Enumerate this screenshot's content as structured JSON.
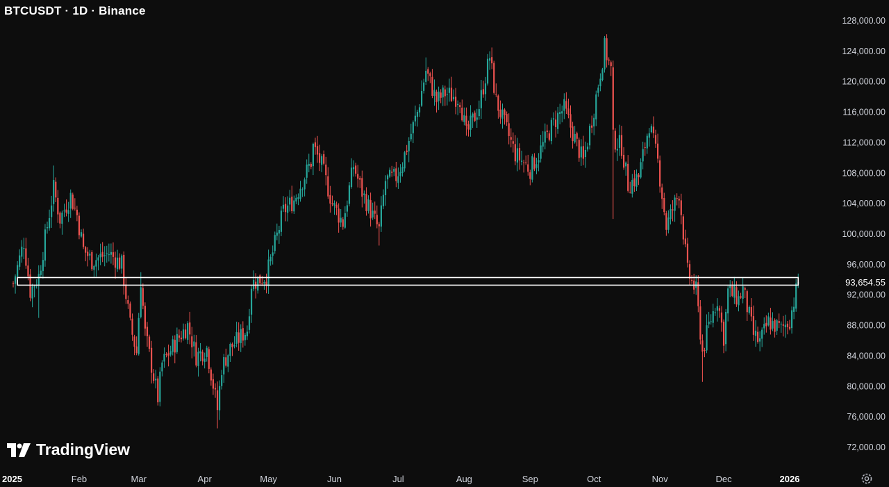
{
  "header": {
    "title": "BTCUSDT · 1D · Binance"
  },
  "branding": {
    "logo_text": "TradingView"
  },
  "icons": {
    "settings": "gear-icon",
    "logo": "tradingview-logo-icon"
  },
  "colors": {
    "up": "#26a69a",
    "down": "#ef5350",
    "background": "#0d0d0d",
    "zone": "#ffffff"
  },
  "chart_data": {
    "type": "candlestick",
    "title": "BTCUSDT · 1D · Binance",
    "xlabel": "",
    "ylabel": "",
    "ylim": [
      70000,
      130000
    ],
    "y_scale": "linear",
    "grid": false,
    "y_ticks": [
      72000,
      76000,
      80000,
      84000,
      88000,
      92000,
      96000,
      100000,
      104000,
      108000,
      112000,
      116000,
      120000,
      124000,
      128000
    ],
    "y_tick_labels": [
      "72,000.00",
      "76,000.00",
      "80,000.00",
      "84,000.00",
      "88,000.00",
      "92,000.00",
      "96,000.00",
      "100,000.00",
      "104,000.00",
      "108,000.00",
      "112,000.00",
      "116,000.00",
      "120,000.00",
      "124,000.00",
      "128,000.00"
    ],
    "x_ticks": [
      {
        "date": "2025-01-01",
        "label": "2025",
        "bold": true
      },
      {
        "date": "2025-02-01",
        "label": "Feb"
      },
      {
        "date": "2025-03-01",
        "label": "Mar"
      },
      {
        "date": "2025-04-01",
        "label": "Apr"
      },
      {
        "date": "2025-05-01",
        "label": "May"
      },
      {
        "date": "2025-06-01",
        "label": "Jun"
      },
      {
        "date": "2025-07-01",
        "label": "Jul"
      },
      {
        "date": "2025-08-01",
        "label": "Aug"
      },
      {
        "date": "2025-09-01",
        "label": "Sep"
      },
      {
        "date": "2025-10-01",
        "label": "Oct"
      },
      {
        "date": "2025-11-01",
        "label": "Nov"
      },
      {
        "date": "2025-12-01",
        "label": "Dec"
      },
      {
        "date": "2026-01-01",
        "label": "2026",
        "bold": true
      }
    ],
    "current_price": 93654.55,
    "current_price_label": "93,654.55",
    "zone": {
      "low": 93300,
      "high": 94300,
      "start": "2025-01-03",
      "end": "2026-01-05"
    },
    "close_path": [
      [
        "2025-01-01",
        93500
      ],
      [
        "2025-01-06",
        99000
      ],
      [
        "2025-01-09",
        92500
      ],
      [
        "2025-01-13",
        94500
      ],
      [
        "2025-01-20",
        106000
      ],
      [
        "2025-01-23",
        102000
      ],
      [
        "2025-01-28",
        105000
      ],
      [
        "2025-01-31",
        102500
      ],
      [
        "2025-02-03",
        98000
      ],
      [
        "2025-02-07",
        96500
      ],
      [
        "2025-02-15",
        97500
      ],
      [
        "2025-02-21",
        96000
      ],
      [
        "2025-02-25",
        88000
      ],
      [
        "2025-02-28",
        84500
      ],
      [
        "2025-03-02",
        94000
      ],
      [
        "2025-03-04",
        87000
      ],
      [
        "2025-03-10",
        78500
      ],
      [
        "2025-03-12",
        83000
      ],
      [
        "2025-03-20",
        86500
      ],
      [
        "2025-03-24",
        88000
      ],
      [
        "2025-03-28",
        84000
      ],
      [
        "2025-04-02",
        85000
      ],
      [
        "2025-04-07",
        77000
      ],
      [
        "2025-04-09",
        82500
      ],
      [
        "2025-04-13",
        85000
      ],
      [
        "2025-04-21",
        87500
      ],
      [
        "2025-04-23",
        93500
      ],
      [
        "2025-04-30",
        94500
      ],
      [
        "2025-05-02",
        96500
      ],
      [
        "2025-05-08",
        103000
      ],
      [
        "2025-05-13",
        104500
      ],
      [
        "2025-05-21",
        109500
      ],
      [
        "2025-05-22",
        111500
      ],
      [
        "2025-05-26",
        109000
      ],
      [
        "2025-05-31",
        104000
      ],
      [
        "2025-06-05",
        101500
      ],
      [
        "2025-06-10",
        109000
      ],
      [
        "2025-06-14",
        105500
      ],
      [
        "2025-06-22",
        100500
      ],
      [
        "2025-06-25",
        107000
      ],
      [
        "2025-06-30",
        107500
      ],
      [
        "2025-07-03",
        109500
      ],
      [
        "2025-07-10",
        116000
      ],
      [
        "2025-07-14",
        121500
      ],
      [
        "2025-07-19",
        117500
      ],
      [
        "2025-07-23",
        118500
      ],
      [
        "2025-07-30",
        117800
      ],
      [
        "2025-08-02",
        113000
      ],
      [
        "2025-08-08",
        116800
      ],
      [
        "2025-08-13",
        123300
      ],
      [
        "2025-08-16",
        117500
      ],
      [
        "2025-08-25",
        110500
      ],
      [
        "2025-09-01",
        108500
      ],
      [
        "2025-09-05",
        110500
      ],
      [
        "2025-09-10",
        113500
      ],
      [
        "2025-09-14",
        115500
      ],
      [
        "2025-09-17",
        116500
      ],
      [
        "2025-09-22",
        112500
      ],
      [
        "2025-09-26",
        109500
      ],
      [
        "2025-10-01",
        116500
      ],
      [
        "2025-10-06",
        124500
      ],
      [
        "2025-10-09",
        121500
      ],
      [
        "2025-10-10",
        112500
      ],
      [
        "2025-10-14",
        111500
      ],
      [
        "2025-10-17",
        106500
      ],
      [
        "2025-10-22",
        107500
      ],
      [
        "2025-10-27",
        114500
      ],
      [
        "2025-10-31",
        109500
      ],
      [
        "2025-11-04",
        101000
      ],
      [
        "2025-11-10",
        105500
      ],
      [
        "2025-11-14",
        95000
      ],
      [
        "2025-11-18",
        92500
      ],
      [
        "2025-11-21",
        84500
      ],
      [
        "2025-11-24",
        88000
      ],
      [
        "2025-11-28",
        91500
      ],
      [
        "2025-12-01",
        86500
      ],
      [
        "2025-12-03",
        92500
      ],
      [
        "2025-12-08",
        91500
      ],
      [
        "2025-12-10",
        92800
      ],
      [
        "2025-12-15",
        86800
      ],
      [
        "2025-12-18",
        85800
      ],
      [
        "2025-12-22",
        88500
      ],
      [
        "2025-12-28",
        87500
      ],
      [
        "2026-01-01",
        88800
      ],
      [
        "2026-01-05",
        93654.55
      ]
    ],
    "spikes": [
      [
        "2025-01-13",
        89000,
        "low"
      ],
      [
        "2025-01-20",
        109000,
        "high"
      ],
      [
        "2025-03-02",
        95000,
        "high"
      ],
      [
        "2025-03-10",
        77500,
        "low"
      ],
      [
        "2025-04-07",
        74500,
        "low"
      ],
      [
        "2025-05-22",
        112000,
        "high"
      ],
      [
        "2025-06-22",
        98500,
        "low"
      ],
      [
        "2025-07-14",
        123200,
        "high"
      ],
      [
        "2025-08-14",
        124500,
        "high"
      ],
      [
        "2025-10-06",
        126000,
        "high"
      ],
      [
        "2025-10-10",
        102000,
        "low"
      ],
      [
        "2025-11-21",
        80600,
        "low"
      ]
    ]
  }
}
